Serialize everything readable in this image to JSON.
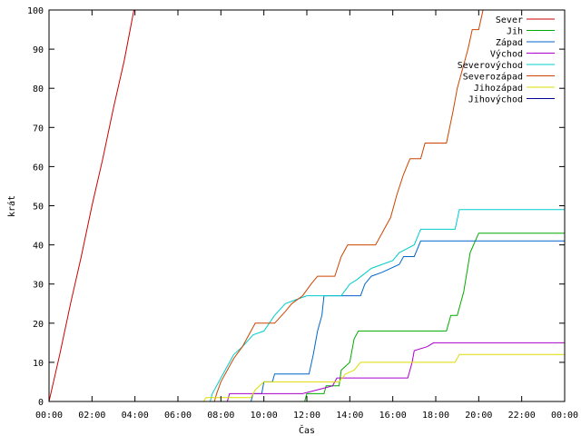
{
  "chart_data": {
    "type": "line",
    "title": "",
    "xlabel": "Čas",
    "ylabel": "krát",
    "xlim": [
      0,
      24
    ],
    "ylim": [
      0,
      100
    ],
    "grid": false,
    "legend_placement": "top-right",
    "x_ticks": [
      {
        "value": 0,
        "label": "00:00"
      },
      {
        "value": 2,
        "label": "02:00"
      },
      {
        "value": 4,
        "label": "04:00"
      },
      {
        "value": 6,
        "label": "06:00"
      },
      {
        "value": 8,
        "label": "08:00"
      },
      {
        "value": 10,
        "label": "10:00"
      },
      {
        "value": 12,
        "label": "12:00"
      },
      {
        "value": 14,
        "label": "14:00"
      },
      {
        "value": 16,
        "label": "16:00"
      },
      {
        "value": 18,
        "label": "18:00"
      },
      {
        "value": 20,
        "label": "20:00"
      },
      {
        "value": 22,
        "label": "22:00"
      },
      {
        "value": 24,
        "label": "00:00"
      }
    ],
    "y_ticks": [
      {
        "value": 0,
        "label": "0"
      },
      {
        "value": 10,
        "label": "10"
      },
      {
        "value": 20,
        "label": "20"
      },
      {
        "value": 30,
        "label": "30"
      },
      {
        "value": 40,
        "label": "40"
      },
      {
        "value": 50,
        "label": "50"
      },
      {
        "value": 60,
        "label": "60"
      },
      {
        "value": 70,
        "label": "70"
      },
      {
        "value": 80,
        "label": "80"
      },
      {
        "value": 90,
        "label": "90"
      },
      {
        "value": 100,
        "label": "100"
      }
    ],
    "series": [
      {
        "name": "Sever",
        "color": "#cc0000",
        "points": [
          [
            0,
            0
          ],
          [
            0.5,
            12
          ],
          [
            1.0,
            25
          ],
          [
            1.5,
            37
          ],
          [
            2.0,
            50
          ],
          [
            2.5,
            62
          ],
          [
            3.0,
            75
          ],
          [
            3.5,
            87
          ],
          [
            3.95,
            100
          ]
        ]
      },
      {
        "name": "Jih",
        "color": "#00aa00",
        "points": [
          [
            0,
            0
          ],
          [
            11.9,
            0
          ],
          [
            12.0,
            2
          ],
          [
            12.8,
            2
          ],
          [
            12.9,
            4
          ],
          [
            13.5,
            4
          ],
          [
            13.6,
            8
          ],
          [
            14.0,
            10
          ],
          [
            14.2,
            16
          ],
          [
            14.4,
            18
          ],
          [
            18.5,
            18
          ],
          [
            18.7,
            22
          ],
          [
            19.0,
            22
          ],
          [
            19.3,
            28
          ],
          [
            19.6,
            38
          ],
          [
            20.0,
            43
          ],
          [
            24,
            43
          ]
        ]
      },
      {
        "name": "Západ",
        "color": "#0066cc",
        "points": [
          [
            0,
            0
          ],
          [
            9.4,
            0
          ],
          [
            9.5,
            2
          ],
          [
            9.9,
            2
          ],
          [
            10.0,
            5
          ],
          [
            10.4,
            5
          ],
          [
            10.5,
            7
          ],
          [
            12.1,
            7
          ],
          [
            12.3,
            12
          ],
          [
            12.5,
            18
          ],
          [
            12.7,
            22
          ],
          [
            12.8,
            27
          ],
          [
            14.5,
            27
          ],
          [
            14.7,
            30
          ],
          [
            15.0,
            32
          ],
          [
            15.5,
            33
          ],
          [
            16.3,
            35
          ],
          [
            16.5,
            37
          ],
          [
            17.0,
            37
          ],
          [
            17.3,
            41
          ],
          [
            24,
            41
          ]
        ]
      },
      {
        "name": "Východ",
        "color": "#aa00cc",
        "points": [
          [
            0,
            0
          ],
          [
            8.3,
            0
          ],
          [
            8.4,
            2
          ],
          [
            11.8,
            2
          ],
          [
            12.5,
            3
          ],
          [
            13.2,
            4
          ],
          [
            13.4,
            6
          ],
          [
            16.7,
            6
          ],
          [
            16.9,
            10
          ],
          [
            17.0,
            13
          ],
          [
            17.6,
            14
          ],
          [
            17.9,
            15
          ],
          [
            24,
            15
          ]
        ]
      },
      {
        "name": "Severovýchod",
        "color": "#00cccc",
        "points": [
          [
            0,
            0
          ],
          [
            7.5,
            0
          ],
          [
            7.6,
            2
          ],
          [
            8.0,
            6
          ],
          [
            8.4,
            10
          ],
          [
            8.6,
            12
          ],
          [
            9.0,
            14
          ],
          [
            9.5,
            17
          ],
          [
            10.0,
            18
          ],
          [
            10.5,
            22
          ],
          [
            11.0,
            25
          ],
          [
            11.5,
            26
          ],
          [
            12.0,
            27
          ],
          [
            13.6,
            27
          ],
          [
            14.0,
            30
          ],
          [
            14.3,
            31
          ],
          [
            15.0,
            34
          ],
          [
            15.5,
            35
          ],
          [
            16.0,
            36
          ],
          [
            16.3,
            38
          ],
          [
            17.0,
            40
          ],
          [
            17.3,
            44
          ],
          [
            18.9,
            44
          ],
          [
            19.1,
            49
          ],
          [
            24,
            49
          ]
        ]
      },
      {
        "name": "Severozápad",
        "color": "#cc4400",
        "points": [
          [
            0,
            0
          ],
          [
            7.7,
            0
          ],
          [
            7.8,
            2
          ],
          [
            8.0,
            5
          ],
          [
            8.3,
            8
          ],
          [
            8.6,
            11
          ],
          [
            9.0,
            14
          ],
          [
            9.3,
            17
          ],
          [
            9.6,
            20
          ],
          [
            10.5,
            20
          ],
          [
            11.0,
            23
          ],
          [
            11.3,
            25
          ],
          [
            11.8,
            27
          ],
          [
            12.2,
            30
          ],
          [
            12.5,
            32
          ],
          [
            13.3,
            32
          ],
          [
            13.6,
            37
          ],
          [
            13.9,
            40
          ],
          [
            15.2,
            40
          ],
          [
            15.5,
            43
          ],
          [
            15.9,
            47
          ],
          [
            16.2,
            53
          ],
          [
            16.5,
            58
          ],
          [
            16.8,
            62
          ],
          [
            17.3,
            62
          ],
          [
            17.5,
            66
          ],
          [
            18.5,
            66
          ],
          [
            18.8,
            74
          ],
          [
            19.0,
            80
          ],
          [
            19.2,
            84
          ],
          [
            19.5,
            90
          ],
          [
            19.7,
            95
          ],
          [
            20.0,
            95
          ],
          [
            20.2,
            100
          ]
        ]
      },
      {
        "name": "Jihozápad",
        "color": "#dddd00",
        "points": [
          [
            0,
            0
          ],
          [
            7.2,
            0
          ],
          [
            7.3,
            1
          ],
          [
            9.4,
            1
          ],
          [
            9.6,
            3
          ],
          [
            10.0,
            5
          ],
          [
            13.5,
            5
          ],
          [
            13.8,
            7
          ],
          [
            14.2,
            8
          ],
          [
            14.5,
            10
          ],
          [
            18.9,
            10
          ],
          [
            19.1,
            12
          ],
          [
            24,
            12
          ]
        ]
      },
      {
        "name": "Jihovýchod",
        "color": "#000099",
        "points": [
          [
            0,
            0
          ],
          [
            24,
            0
          ]
        ]
      }
    ]
  }
}
